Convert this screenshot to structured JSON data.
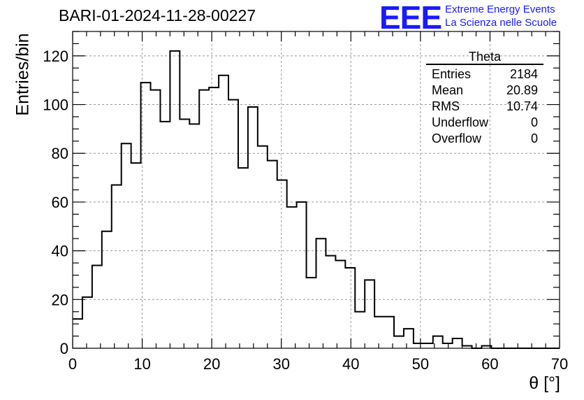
{
  "header": {
    "run_title": "BARI-01-2024-11-28-00227",
    "logo_mark": "EEE",
    "logo_line1": "Extreme Energy Events",
    "logo_line2": "La Scienza nelle Scuole"
  },
  "stats_box": {
    "title": "Theta",
    "rows": [
      {
        "label": "Entries",
        "value": "2184"
      },
      {
        "label": "Mean",
        "value": "20.89"
      },
      {
        "label": "RMS",
        "value": "10.74"
      },
      {
        "label": "Underflow",
        "value": "0"
      },
      {
        "label": "Overflow",
        "value": "0"
      }
    ]
  },
  "chart_data": {
    "type": "bar",
    "title": "BARI-01-2024-11-28-00227",
    "xlabel": "θ [°]",
    "ylabel": "Entries/bin",
    "xlim": [
      0,
      70
    ],
    "ylim": [
      0,
      130
    ],
    "grid": true,
    "x_ticks": [
      0,
      10,
      20,
      30,
      40,
      50,
      60,
      70
    ],
    "y_ticks": [
      0,
      20,
      40,
      60,
      80,
      100,
      120
    ],
    "bin_width": 1.4,
    "bin_edges_start": 0,
    "values": [
      12,
      21,
      34,
      48,
      67,
      84,
      76,
      109,
      106,
      93,
      122,
      94,
      92,
      106,
      107,
      112,
      102,
      74,
      99,
      83,
      77,
      69,
      58,
      60,
      29,
      45,
      38,
      36,
      33,
      15,
      28,
      13,
      13,
      5,
      8,
      2,
      2,
      5,
      2,
      4,
      1,
      0,
      1,
      0,
      0,
      0,
      0,
      0,
      0,
      0
    ],
    "line_color": "#000000"
  }
}
